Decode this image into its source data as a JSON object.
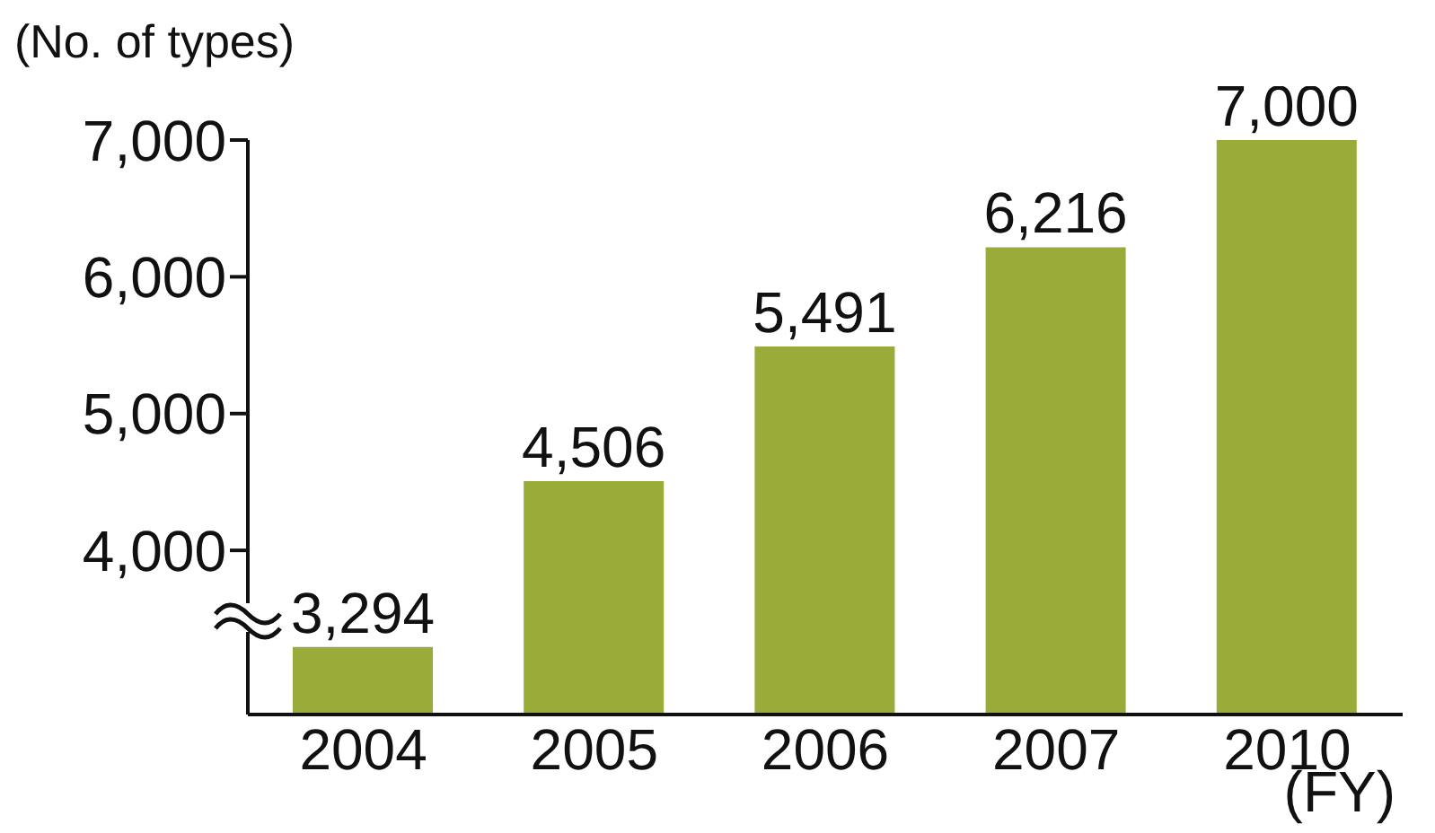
{
  "chart_data": {
    "type": "bar",
    "ylabel": "(No. of types)",
    "xlabel": "(FY)",
    "categories": [
      "2004",
      "2005",
      "2006",
      "2007",
      "2010"
    ],
    "values": [
      3294,
      4506,
      5491,
      6216,
      7000
    ],
    "value_labels": [
      "3,294",
      "4,506",
      "5,491",
      "6,216",
      "7,000"
    ],
    "color": "#9aab3a",
    "ylim": [
      2800,
      7000
    ],
    "yticks": [
      {
        "value": 4000,
        "label": "4,000"
      },
      {
        "value": 5000,
        "label": "5,000"
      },
      {
        "value": 6000,
        "label": "6,000"
      },
      {
        "value": 7000,
        "label": "7,000"
      }
    ],
    "grid": false,
    "legend": false
  }
}
